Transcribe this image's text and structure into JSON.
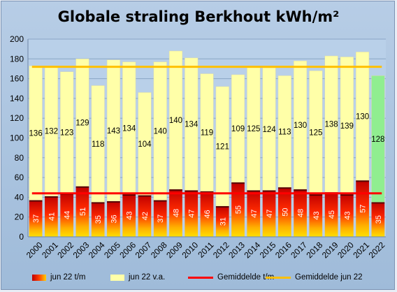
{
  "chart_data": {
    "type": "bar",
    "title": "Globale straling Berkhout kWh/m²",
    "categories": [
      "2000",
      "2001",
      "2002",
      "2003",
      "2004",
      "2005",
      "2006",
      "2007",
      "2008",
      "2009",
      "2010",
      "2011",
      "2012",
      "2013",
      "2014",
      "2015",
      "2016",
      "2017",
      "2018",
      "2019",
      "2020",
      "2021",
      "2022"
    ],
    "series": [
      {
        "name": "jun 22 t/m",
        "values": [
          37,
          41,
          44,
          51,
          35,
          36,
          43,
          42,
          37,
          48,
          47,
          46,
          31,
          55,
          47,
          47,
          50,
          48,
          43,
          45,
          43,
          57,
          35
        ],
        "color": "#e00000"
      },
      {
        "name": "jun 22 v.a.",
        "values": [
          136,
          132,
          123,
          129,
          118,
          143,
          134,
          104,
          140,
          140,
          134,
          119,
          121,
          109,
          125,
          124,
          113,
          130,
          125,
          138,
          139,
          130,
          128
        ],
        "color": "#ffffa8"
      },
      {
        "name": "Gemiddelde t/m",
        "type": "line",
        "value": 44,
        "color": "#ff0000"
      },
      {
        "name": "Gemiddelde jun 22",
        "type": "line",
        "value": 172,
        "color": "#ffc000"
      }
    ],
    "current_year_color": "#90ee90",
    "ylim": [
      0,
      200
    ],
    "yticks": [
      0,
      20,
      40,
      60,
      80,
      100,
      120,
      140,
      160,
      180,
      200
    ],
    "grid": true,
    "legend": "bottom"
  }
}
